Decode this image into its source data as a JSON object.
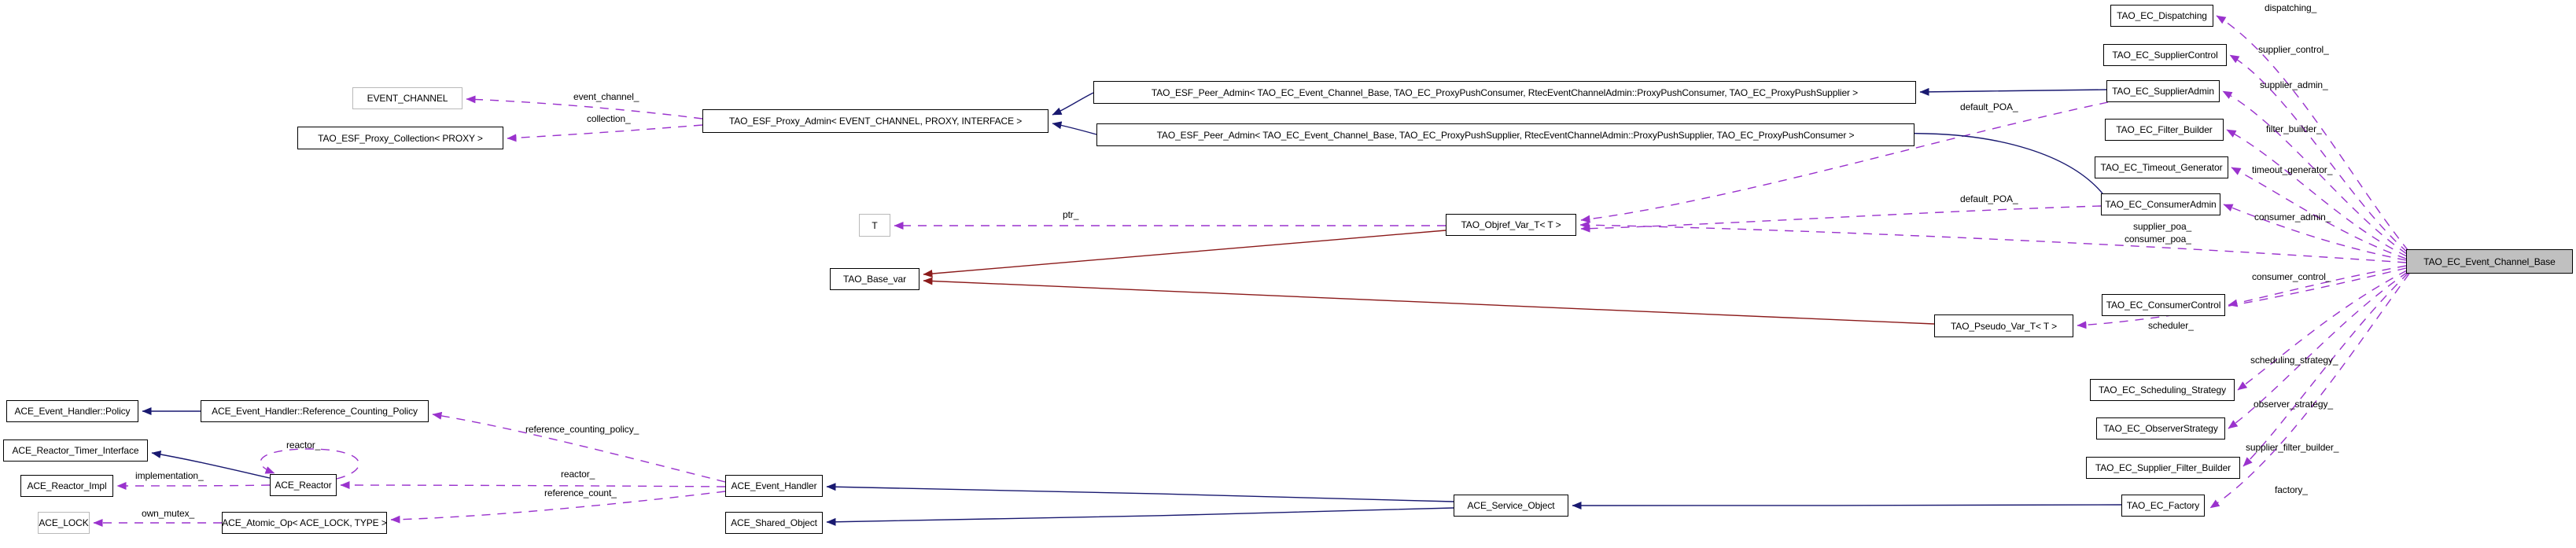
{
  "diagram": {
    "kind": "collaboration-graph",
    "main_class": "TAO_EC_Event_Channel_Base",
    "colors": {
      "background": "#ffffff",
      "inheritance_edge": "#191970",
      "private_inheritance_edge": "#8b1a1a",
      "usage_edge": "#9a32cd",
      "node_border": "#000000",
      "undocumented_node_border": "#b9b9b9",
      "main_node_fill": "#c0c0c0"
    },
    "nodes": [
      {
        "id": "event_channel",
        "label": "EVENT_CHANNEL",
        "style": "muted"
      },
      {
        "id": "proxy_collection",
        "label": "TAO_ESF_Proxy_Collection< PROXY >",
        "style": "plain"
      },
      {
        "id": "proxy_admin",
        "label": "TAO_ESF_Proxy_Admin< EVENT_CHANNEL, PROXY, INTERFACE >",
        "style": "plain"
      },
      {
        "id": "peer_admin_consumer",
        "label": "TAO_ESF_Peer_Admin< TAO_EC_Event_Channel_Base, TAO_EC_ProxyPushConsumer, RtecEventChannelAdmin::ProxyPushConsumer, TAO_EC_ProxyPushSupplier >",
        "style": "plain"
      },
      {
        "id": "peer_admin_supplier",
        "label": "TAO_ESF_Peer_Admin< TAO_EC_Event_Channel_Base, TAO_EC_ProxyPushSupplier, RtecEventChannelAdmin::ProxyPushSupplier, TAO_EC_ProxyPushConsumer >",
        "style": "plain"
      },
      {
        "id": "t_param",
        "label": "T",
        "style": "muted"
      },
      {
        "id": "objref_var",
        "label": "TAO_Objref_Var_T< T >",
        "style": "plain"
      },
      {
        "id": "base_var",
        "label": "TAO_Base_var",
        "style": "plain"
      },
      {
        "id": "pseudo_var",
        "label": "TAO_Pseudo_Var_T< T >",
        "style": "plain"
      },
      {
        "id": "dispatching",
        "label": "TAO_EC_Dispatching",
        "style": "plain"
      },
      {
        "id": "supplier_control",
        "label": "TAO_EC_SupplierControl",
        "style": "plain"
      },
      {
        "id": "supplier_admin",
        "label": "TAO_EC_SupplierAdmin",
        "style": "plain"
      },
      {
        "id": "filter_builder",
        "label": "TAO_EC_Filter_Builder",
        "style": "plain"
      },
      {
        "id": "timeout_generator",
        "label": "TAO_EC_Timeout_Generator",
        "style": "plain"
      },
      {
        "id": "consumer_admin",
        "label": "TAO_EC_ConsumerAdmin",
        "style": "plain"
      },
      {
        "id": "main",
        "label": "TAO_EC_Event_Channel_Base",
        "style": "main"
      },
      {
        "id": "consumer_control",
        "label": "TAO_EC_ConsumerControl",
        "style": "plain"
      },
      {
        "id": "scheduling_strategy",
        "label": "TAO_EC_Scheduling_Strategy",
        "style": "plain"
      },
      {
        "id": "observer_strategy",
        "label": "TAO_EC_ObserverStrategy",
        "style": "plain"
      },
      {
        "id": "supplier_filter_builder",
        "label": "TAO_EC_Supplier_Filter_Builder",
        "style": "plain"
      },
      {
        "id": "factory",
        "label": "TAO_EC_Factory",
        "style": "plain"
      },
      {
        "id": "eh_policy",
        "label": "ACE_Event_Handler::Policy",
        "style": "plain"
      },
      {
        "id": "ref_counting_policy",
        "label": "ACE_Event_Handler::Reference_Counting_Policy",
        "style": "plain"
      },
      {
        "id": "reactor_timer",
        "label": "ACE_Reactor_Timer_Interface",
        "style": "plain"
      },
      {
        "id": "reactor_impl",
        "label": "ACE_Reactor_Impl",
        "style": "plain"
      },
      {
        "id": "reactor",
        "label": "ACE_Reactor",
        "style": "plain"
      },
      {
        "id": "ace_lock",
        "label": "ACE_LOCK",
        "style": "muted"
      },
      {
        "id": "atomic_op",
        "label": "ACE_Atomic_Op< ACE_LOCK, TYPE >",
        "style": "plain"
      },
      {
        "id": "event_handler",
        "label": "ACE_Event_Handler",
        "style": "plain"
      },
      {
        "id": "shared_object",
        "label": "ACE_Shared_Object",
        "style": "plain"
      },
      {
        "id": "service_object",
        "label": "ACE_Service_Object",
        "style": "plain"
      }
    ],
    "edges": [
      {
        "id": "e_dispatching",
        "from": "main",
        "to": "dispatching",
        "type": "usage",
        "labels": [
          "dispatching_"
        ]
      },
      {
        "id": "e_supplier_control",
        "from": "main",
        "to": "supplier_control",
        "type": "usage",
        "labels": [
          "supplier_control_"
        ]
      },
      {
        "id": "e_supplier_admin",
        "from": "main",
        "to": "supplier_admin",
        "type": "usage",
        "labels": [
          "supplier_admin_"
        ]
      },
      {
        "id": "e_filter_builder",
        "from": "main",
        "to": "filter_builder",
        "type": "usage",
        "labels": [
          "filter_builder_"
        ]
      },
      {
        "id": "e_timeout_generator",
        "from": "main",
        "to": "timeout_generator",
        "type": "usage",
        "labels": [
          "timeout_generator_"
        ]
      },
      {
        "id": "e_consumer_admin",
        "from": "main",
        "to": "consumer_admin",
        "type": "usage",
        "labels": [
          "consumer_admin_"
        ]
      },
      {
        "id": "e_poa",
        "from": "main",
        "to": "objref_var",
        "type": "usage",
        "labels": [
          "supplier_poa_",
          "consumer_poa_"
        ]
      },
      {
        "id": "e_consumer_control",
        "from": "main",
        "to": "consumer_control",
        "type": "usage",
        "labels": [
          "consumer_control_"
        ]
      },
      {
        "id": "e_scheduler",
        "from": "main",
        "to": "pseudo_var",
        "type": "usage",
        "labels": [
          "scheduler_"
        ]
      },
      {
        "id": "e_scheduling_strategy",
        "from": "main",
        "to": "scheduling_strategy",
        "type": "usage",
        "labels": [
          "scheduling_strategy_"
        ]
      },
      {
        "id": "e_observer_strategy",
        "from": "main",
        "to": "observer_strategy",
        "type": "usage",
        "labels": [
          "observer_strategy_"
        ]
      },
      {
        "id": "e_supplier_filter_builder",
        "from": "main",
        "to": "supplier_filter_builder",
        "type": "usage",
        "labels": [
          "supplier_filter_builder_"
        ]
      },
      {
        "id": "e_factory",
        "from": "main",
        "to": "factory",
        "type": "usage",
        "labels": [
          "factory_"
        ]
      },
      {
        "id": "e_default_poa_sa",
        "from": "supplier_admin",
        "to": "objref_var",
        "type": "usage",
        "labels": [
          "default_POA_"
        ]
      },
      {
        "id": "e_default_poa_ca",
        "from": "consumer_admin",
        "to": "objref_var",
        "type": "usage",
        "labels": [
          "default_POA_"
        ]
      },
      {
        "id": "e_ptr",
        "from": "objref_var",
        "to": "t_param",
        "type": "usage",
        "labels": [
          "ptr_"
        ]
      },
      {
        "id": "e_event_channel",
        "from": "proxy_admin",
        "to": "event_channel",
        "type": "usage",
        "labels": [
          "event_channel_"
        ]
      },
      {
        "id": "e_collection",
        "from": "proxy_admin",
        "to": "proxy_collection",
        "type": "usage",
        "labels": [
          "collection_"
        ]
      },
      {
        "id": "e_ref_counting_policy",
        "from": "event_handler",
        "to": "ref_counting_policy",
        "type": "usage",
        "labels": [
          "reference_counting_policy_"
        ]
      },
      {
        "id": "e_reactor_member",
        "from": "event_handler",
        "to": "reactor",
        "type": "usage",
        "labels": [
          "reactor_"
        ]
      },
      {
        "id": "e_reference_count",
        "from": "event_handler",
        "to": "atomic_op",
        "type": "usage",
        "labels": [
          "reference_count_"
        ]
      },
      {
        "id": "e_implementation",
        "from": "reactor",
        "to": "reactor_impl",
        "type": "usage",
        "labels": [
          "implementation_"
        ]
      },
      {
        "id": "e_own_mutex",
        "from": "atomic_op",
        "to": "ace_lock",
        "type": "usage",
        "labels": [
          "own_mutex_"
        ]
      },
      {
        "id": "e_reactor_self",
        "from": "reactor",
        "to": "reactor",
        "type": "usage",
        "labels": [
          "reactor_"
        ]
      },
      {
        "id": "e_peer1_proxyadmin",
        "from": "peer_admin_consumer",
        "to": "proxy_admin",
        "type": "inheritance",
        "labels": []
      },
      {
        "id": "e_peer2_proxyadmin",
        "from": "peer_admin_supplier",
        "to": "proxy_admin",
        "type": "inheritance",
        "labels": []
      },
      {
        "id": "e_sa_peer1",
        "from": "supplier_admin",
        "to": "peer_admin_consumer",
        "type": "inheritance",
        "labels": []
      },
      {
        "id": "e_ca_peer2",
        "from": "consumer_admin",
        "to": "peer_admin_supplier",
        "type": "inheritance",
        "labels": []
      },
      {
        "id": "e_rcp_policy",
        "from": "ref_counting_policy",
        "to": "eh_policy",
        "type": "inheritance",
        "labels": []
      },
      {
        "id": "e_reactor_timer",
        "from": "reactor",
        "to": "reactor_timer",
        "type": "inheritance",
        "labels": []
      },
      {
        "id": "e_so_eh",
        "from": "service_object",
        "to": "event_handler",
        "type": "inheritance",
        "labels": []
      },
      {
        "id": "e_so_sho",
        "from": "service_object",
        "to": "shared_object",
        "type": "inheritance",
        "labels": []
      },
      {
        "id": "e_factory_so",
        "from": "factory",
        "to": "service_object",
        "type": "inheritance",
        "labels": []
      },
      {
        "id": "e_objref_basevar",
        "from": "objref_var",
        "to": "base_var",
        "type": "private-inheritance",
        "labels": []
      },
      {
        "id": "e_pseudo_basevar",
        "from": "pseudo_var",
        "to": "base_var",
        "type": "private-inheritance",
        "labels": []
      }
    ]
  }
}
